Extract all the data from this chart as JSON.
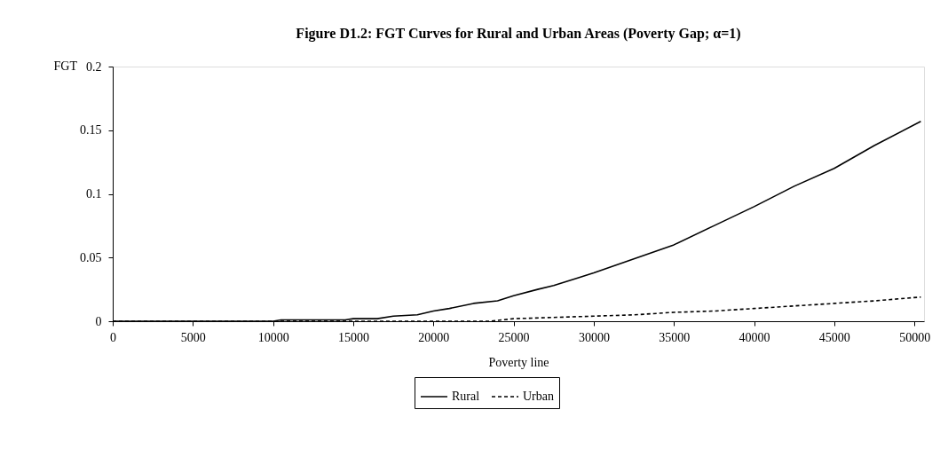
{
  "chart_data": {
    "type": "line",
    "title": "Figure D1.2: FGT Curves for Rural and Urban Areas (Poverty Gap; α=1)",
    "xlabel": "Poverty line",
    "ylabel": "FGT",
    "xlim": [
      0,
      50600
    ],
    "xticks": [
      0,
      5000,
      10000,
      15000,
      20000,
      25000,
      30000,
      35000,
      40000,
      45000,
      50000
    ],
    "ylim": [
      0,
      0.2
    ],
    "yticks": [
      0,
      0.05,
      0.1,
      0.15,
      0.2
    ],
    "grid": false,
    "legend": "bottom",
    "marker": "none",
    "series": [
      {
        "name": "Rural",
        "color": "#000000",
        "line_style": "solid",
        "x": [
          0,
          5000,
          10000,
          10500,
          14500,
          15000,
          16500,
          17500,
          19000,
          20000,
          21000,
          22500,
          24000,
          25000,
          26500,
          27500,
          29000,
          30000,
          32500,
          35000,
          37500,
          40000,
          42500,
          45000,
          47500,
          50400
        ],
        "values": [
          0,
          0,
          0,
          0.001,
          0.001,
          0.002,
          0.002,
          0.004,
          0.005,
          0.008,
          0.01,
          0.014,
          0.016,
          0.02,
          0.025,
          0.028,
          0.034,
          0.038,
          0.049,
          0.06,
          0.075,
          0.09,
          0.106,
          0.12,
          0.138,
          0.157
        ]
      },
      {
        "name": "Urban",
        "color": "#000000",
        "line_style": "dashed",
        "x": [
          0,
          10000,
          15000,
          20000,
          23500,
          25000,
          27500,
          30000,
          32500,
          35000,
          37500,
          40000,
          42500,
          45000,
          47500,
          50400
        ],
        "values": [
          0,
          0,
          0,
          0,
          0,
          0.002,
          0.003,
          0.004,
          0.005,
          0.007,
          0.008,
          0.01,
          0.012,
          0.014,
          0.016,
          0.019
        ]
      }
    ]
  }
}
